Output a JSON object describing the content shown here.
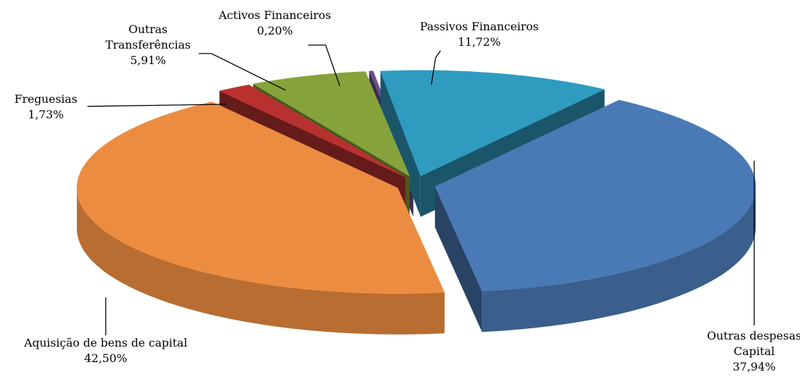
{
  "chart_data": {
    "type": "pie3d",
    "categories": [
      "Outras despesas Capital",
      "Aquisição de bens de capital",
      "Freguesias",
      "Outras Transferências",
      "Activos Financeiros",
      "Passivos Financeiros"
    ],
    "values": [
      37.94,
      42.5,
      1.73,
      5.91,
      0.2,
      11.72
    ],
    "value_labels": [
      "37,94%",
      "42,50%",
      "1,73%",
      "5,91%",
      "0,20%",
      "11,72%"
    ],
    "colors": [
      "#4a7ab5",
      "#ec8c40",
      "#b8312f",
      "#86a23a",
      "#6a4f8c",
      "#2f9bbf"
    ]
  }
}
